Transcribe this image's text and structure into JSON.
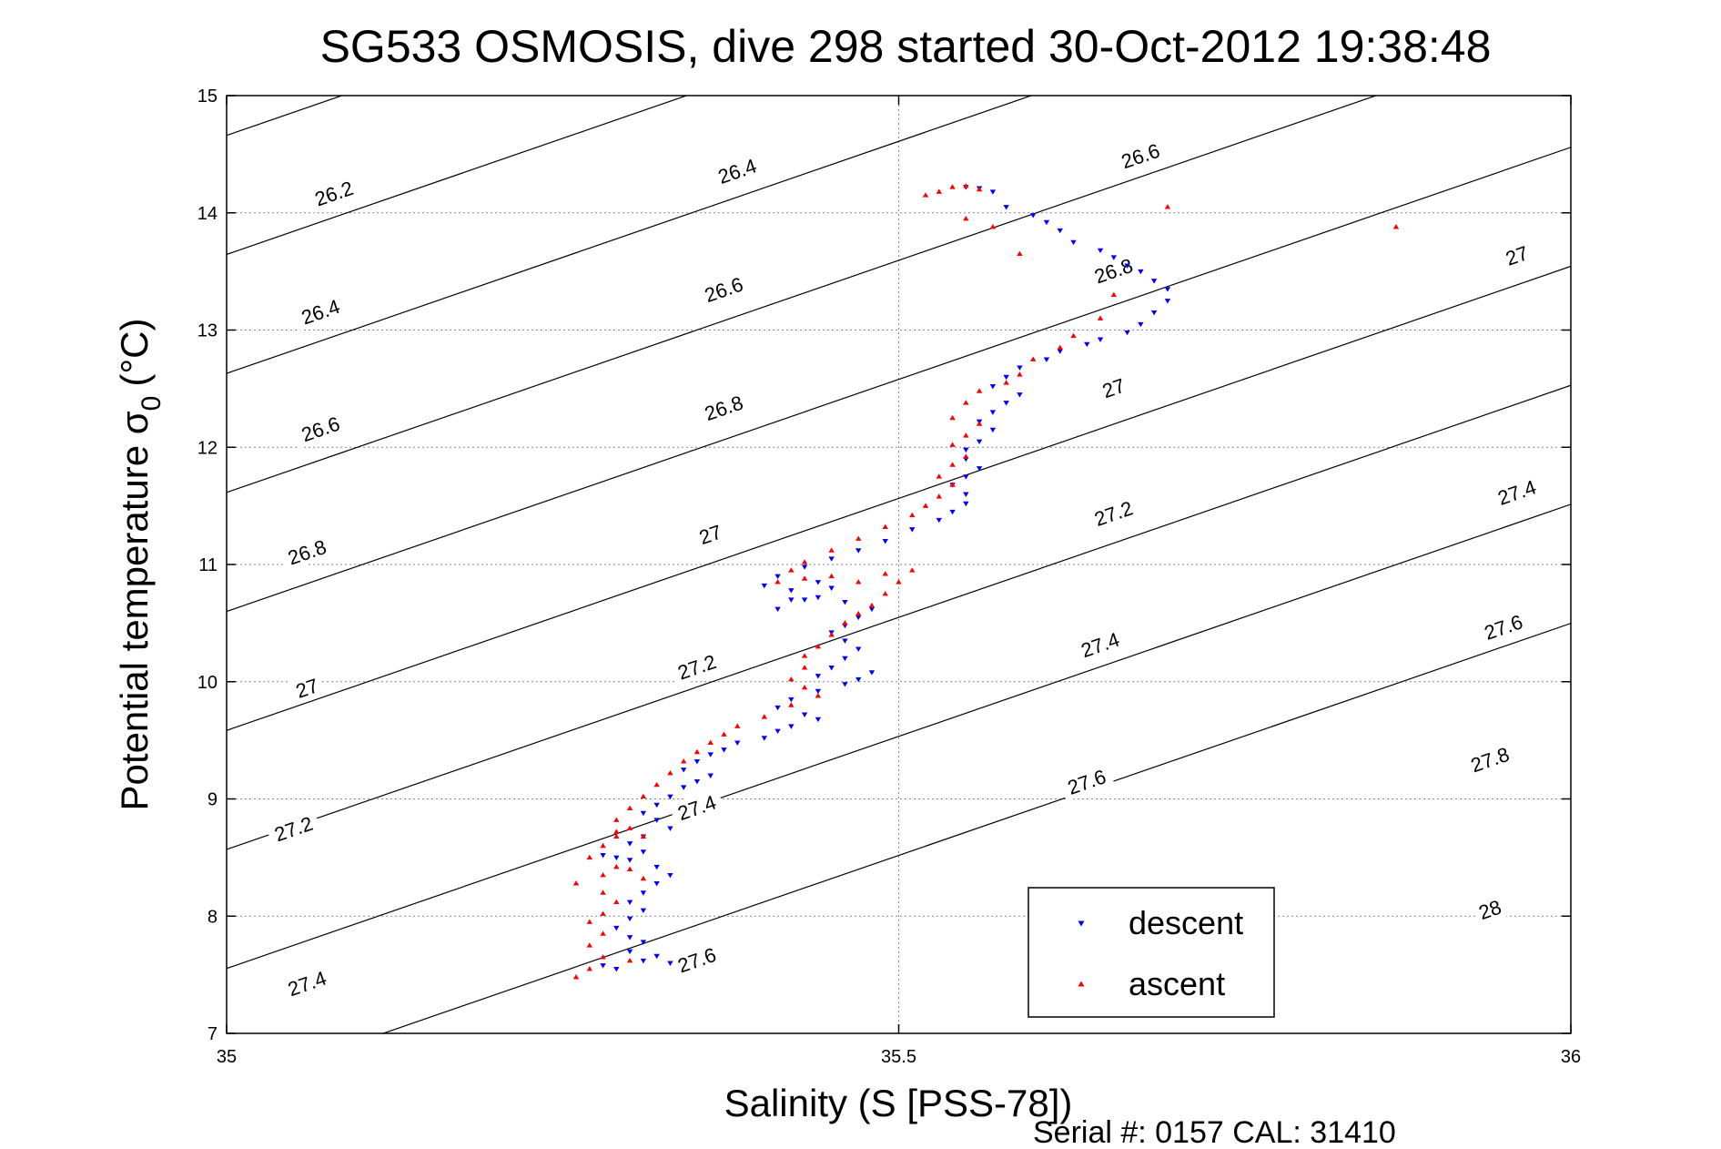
{
  "chart_data": {
    "type": "scatter",
    "title": "SG533 OSMOSIS, dive 298 started 30-Oct-2012 19:38:48",
    "xlabel": "Salinity (S [PSS-78])",
    "ylabel_main": "Potential temperature σ",
    "ylabel_sub": "0",
    "ylabel_unit": "(°C)",
    "footer": "Serial #: 0157  CAL: 31410",
    "xlim": [
      35,
      36
    ],
    "ylim": [
      7,
      15
    ],
    "xticks": [
      35,
      35.5,
      36
    ],
    "xtick_labels": [
      "35",
      "35.5",
      "36"
    ],
    "yticks": [
      7,
      8,
      9,
      10,
      11,
      12,
      13,
      14,
      15
    ],
    "ytick_labels": [
      "7",
      "8",
      "9",
      "10",
      "11",
      "12",
      "13",
      "14",
      "15"
    ],
    "grid": true,
    "legend_position": "bottom-right",
    "contours": {
      "levels": [
        26.2,
        26.4,
        26.6,
        26.8,
        27,
        27.2,
        27.4,
        27.6,
        27.8,
        28
      ],
      "labels": [
        {
          "text": "26.2",
          "s": 35.08,
          "t": 14.16
        },
        {
          "text": "26.4",
          "s": 35.38,
          "t": 14.35
        },
        {
          "text": "26.6",
          "s": 35.68,
          "t": 14.48
        },
        {
          "text": "26.4",
          "s": 35.07,
          "t": 13.15
        },
        {
          "text": "26.6",
          "s": 35.37,
          "t": 13.34
        },
        {
          "text": "26.8",
          "s": 35.66,
          "t": 13.5
        },
        {
          "text": "27",
          "s": 35.96,
          "t": 13.63
        },
        {
          "text": "26.6",
          "s": 35.07,
          "t": 12.15
        },
        {
          "text": "26.8",
          "s": 35.37,
          "t": 12.33
        },
        {
          "text": "27",
          "s": 35.66,
          "t": 12.5
        },
        {
          "text": "26.8",
          "s": 35.06,
          "t": 11.1
        },
        {
          "text": "27",
          "s": 35.36,
          "t": 11.25
        },
        {
          "text": "27.2",
          "s": 35.66,
          "t": 11.43
        },
        {
          "text": "27.4",
          "s": 35.96,
          "t": 11.61
        },
        {
          "text": "27",
          "s": 35.06,
          "t": 9.94
        },
        {
          "text": "27.2",
          "s": 35.35,
          "t": 10.12
        },
        {
          "text": "27.4",
          "s": 35.65,
          "t": 10.31
        },
        {
          "text": "27.6",
          "s": 35.95,
          "t": 10.46
        },
        {
          "text": "27.2",
          "s": 35.05,
          "t": 8.74
        },
        {
          "text": "27.4",
          "s": 35.35,
          "t": 8.92
        },
        {
          "text": "27.6",
          "s": 35.64,
          "t": 9.14
        },
        {
          "text": "27.8",
          "s": 35.94,
          "t": 9.33
        },
        {
          "text": "27.4",
          "s": 35.06,
          "t": 7.42
        },
        {
          "text": "27.6",
          "s": 35.35,
          "t": 7.62
        },
        {
          "text": "28",
          "s": 35.94,
          "t": 8.05
        }
      ]
    },
    "series": [
      {
        "name": "descent",
        "color": "#0000ff",
        "marker": "triangle-down",
        "points": [
          [
            35.55,
            14.22
          ],
          [
            35.56,
            14.21
          ],
          [
            35.57,
            14.18
          ],
          [
            35.58,
            14.05
          ],
          [
            35.6,
            13.98
          ],
          [
            35.61,
            13.92
          ],
          [
            35.62,
            13.85
          ],
          [
            35.63,
            13.75
          ],
          [
            35.65,
            13.68
          ],
          [
            35.66,
            13.62
          ],
          [
            35.67,
            13.55
          ],
          [
            35.68,
            13.5
          ],
          [
            35.69,
            13.42
          ],
          [
            35.7,
            13.35
          ],
          [
            35.7,
            13.25
          ],
          [
            35.69,
            13.15
          ],
          [
            35.68,
            13.05
          ],
          [
            35.67,
            12.98
          ],
          [
            35.65,
            12.92
          ],
          [
            35.64,
            12.88
          ],
          [
            35.62,
            12.82
          ],
          [
            35.61,
            12.75
          ],
          [
            35.59,
            12.68
          ],
          [
            35.58,
            12.6
          ],
          [
            35.57,
            12.52
          ],
          [
            35.59,
            12.45
          ],
          [
            35.58,
            12.38
          ],
          [
            35.57,
            12.3
          ],
          [
            35.56,
            12.22
          ],
          [
            35.57,
            12.15
          ],
          [
            35.56,
            12.05
          ],
          [
            35.55,
            11.98
          ],
          [
            35.55,
            11.9
          ],
          [
            35.56,
            11.82
          ],
          [
            35.55,
            11.75
          ],
          [
            35.54,
            11.68
          ],
          [
            35.55,
            11.6
          ],
          [
            35.55,
            11.52
          ],
          [
            35.54,
            11.45
          ],
          [
            35.53,
            11.38
          ],
          [
            35.51,
            11.3
          ],
          [
            35.49,
            11.2
          ],
          [
            35.47,
            11.12
          ],
          [
            35.45,
            11.05
          ],
          [
            35.43,
            10.98
          ],
          [
            35.41,
            10.9
          ],
          [
            35.4,
            10.82
          ],
          [
            35.42,
            10.78
          ],
          [
            35.44,
            10.85
          ],
          [
            35.45,
            10.8
          ],
          [
            35.43,
            10.7
          ],
          [
            35.41,
            10.62
          ],
          [
            35.42,
            10.7
          ],
          [
            35.44,
            10.72
          ],
          [
            35.46,
            10.68
          ],
          [
            35.48,
            10.62
          ],
          [
            35.47,
            10.55
          ],
          [
            35.46,
            10.48
          ],
          [
            35.45,
            10.42
          ],
          [
            35.46,
            10.35
          ],
          [
            35.47,
            10.28
          ],
          [
            35.46,
            10.2
          ],
          [
            35.45,
            10.12
          ],
          [
            35.44,
            10.05
          ],
          [
            35.47,
            10.02
          ],
          [
            35.48,
            10.08
          ],
          [
            35.46,
            9.98
          ],
          [
            35.44,
            9.92
          ],
          [
            35.42,
            9.85
          ],
          [
            35.41,
            9.78
          ],
          [
            35.43,
            9.72
          ],
          [
            35.44,
            9.68
          ],
          [
            35.42,
            9.62
          ],
          [
            35.41,
            9.58
          ],
          [
            35.4,
            9.52
          ],
          [
            35.38,
            9.48
          ],
          [
            35.37,
            9.42
          ],
          [
            35.36,
            9.38
          ],
          [
            35.35,
            9.32
          ],
          [
            35.34,
            9.25
          ],
          [
            35.36,
            9.2
          ],
          [
            35.35,
            9.15
          ],
          [
            35.34,
            9.1
          ],
          [
            35.33,
            9.02
          ],
          [
            35.32,
            8.95
          ],
          [
            35.31,
            8.88
          ],
          [
            35.32,
            8.82
          ],
          [
            35.33,
            8.75
          ],
          [
            35.31,
            8.68
          ],
          [
            35.3,
            8.62
          ],
          [
            35.31,
            8.55
          ],
          [
            35.3,
            8.48
          ],
          [
            35.32,
            8.42
          ],
          [
            35.33,
            8.35
          ],
          [
            35.32,
            8.28
          ],
          [
            35.31,
            8.2
          ],
          [
            35.3,
            8.12
          ],
          [
            35.31,
            8.05
          ],
          [
            35.3,
            7.98
          ],
          [
            35.29,
            7.9
          ],
          [
            35.3,
            7.82
          ],
          [
            35.31,
            7.78
          ],
          [
            35.3,
            7.7
          ],
          [
            35.31,
            7.62
          ],
          [
            35.32,
            7.66
          ],
          [
            35.33,
            7.6
          ],
          [
            35.29,
            7.55
          ],
          [
            35.28,
            7.58
          ],
          [
            35.29,
            8.5
          ],
          [
            35.28,
            8.52
          ]
        ]
      },
      {
        "name": "ascent",
        "color": "#ff0000",
        "marker": "triangle-up",
        "points": [
          [
            35.52,
            14.15
          ],
          [
            35.53,
            14.18
          ],
          [
            35.54,
            14.22
          ],
          [
            35.55,
            14.23
          ],
          [
            35.56,
            14.2
          ],
          [
            35.55,
            13.95
          ],
          [
            35.57,
            13.88
          ],
          [
            35.59,
            13.65
          ],
          [
            35.7,
            14.05
          ],
          [
            35.87,
            13.88
          ],
          [
            35.66,
            13.3
          ],
          [
            35.65,
            13.1
          ],
          [
            35.63,
            12.95
          ],
          [
            35.62,
            12.85
          ],
          [
            35.6,
            12.75
          ],
          [
            35.59,
            12.62
          ],
          [
            35.58,
            12.55
          ],
          [
            35.56,
            12.48
          ],
          [
            35.55,
            12.38
          ],
          [
            35.54,
            12.25
          ],
          [
            35.56,
            12.2
          ],
          [
            35.55,
            12.1
          ],
          [
            35.54,
            12.02
          ],
          [
            35.55,
            11.92
          ],
          [
            35.54,
            11.85
          ],
          [
            35.53,
            11.75
          ],
          [
            35.54,
            11.68
          ],
          [
            35.53,
            11.58
          ],
          [
            35.52,
            11.5
          ],
          [
            35.51,
            11.42
          ],
          [
            35.49,
            11.32
          ],
          [
            35.47,
            11.22
          ],
          [
            35.45,
            11.12
          ],
          [
            35.43,
            11.02
          ],
          [
            35.42,
            10.95
          ],
          [
            35.41,
            10.85
          ],
          [
            35.43,
            10.88
          ],
          [
            35.45,
            10.9
          ],
          [
            35.47,
            10.85
          ],
          [
            35.49,
            10.92
          ],
          [
            35.51,
            10.95
          ],
          [
            35.5,
            10.85
          ],
          [
            35.49,
            10.75
          ],
          [
            35.48,
            10.65
          ],
          [
            35.47,
            10.58
          ],
          [
            35.46,
            10.5
          ],
          [
            35.45,
            10.4
          ],
          [
            35.44,
            10.3
          ],
          [
            35.43,
            10.22
          ],
          [
            35.43,
            10.12
          ],
          [
            35.42,
            10.02
          ],
          [
            35.43,
            9.95
          ],
          [
            35.44,
            9.88
          ],
          [
            35.42,
            9.8
          ],
          [
            35.4,
            9.7
          ],
          [
            35.38,
            9.62
          ],
          [
            35.37,
            9.55
          ],
          [
            35.36,
            9.48
          ],
          [
            35.35,
            9.4
          ],
          [
            35.34,
            9.32
          ],
          [
            35.33,
            9.22
          ],
          [
            35.32,
            9.12
          ],
          [
            35.31,
            9.02
          ],
          [
            35.3,
            8.92
          ],
          [
            35.29,
            8.82
          ],
          [
            35.3,
            8.75
          ],
          [
            35.29,
            8.68
          ],
          [
            35.28,
            8.6
          ],
          [
            35.27,
            8.5
          ],
          [
            35.29,
            8.42
          ],
          [
            35.28,
            8.35
          ],
          [
            35.26,
            8.28
          ],
          [
            35.28,
            8.2
          ],
          [
            35.29,
            8.12
          ],
          [
            35.28,
            8.02
          ],
          [
            35.27,
            7.95
          ],
          [
            35.28,
            7.85
          ],
          [
            35.27,
            7.75
          ],
          [
            35.28,
            7.65
          ],
          [
            35.27,
            7.55
          ],
          [
            35.26,
            7.48
          ],
          [
            35.3,
            7.62
          ],
          [
            35.31,
            8.32
          ],
          [
            35.3,
            8.4
          ],
          [
            35.31,
            8.68
          ],
          [
            35.29,
            8.72
          ]
        ]
      }
    ]
  }
}
